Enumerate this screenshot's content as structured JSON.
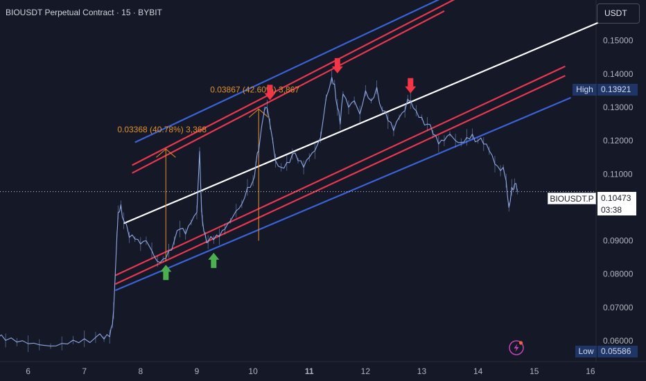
{
  "header": {
    "title": "BIOUSDT Perpetual Contract · 15 · BYBIT",
    "currency_button": "USDT"
  },
  "price_labels": {
    "high_label": "High",
    "high_value": "0.13921",
    "low_label": "Low",
    "low_value": "0.05586",
    "symbol": "BIOUSDT.P",
    "last_value": "0.10473",
    "countdown": "03:38"
  },
  "colors": {
    "background": "#141827",
    "price_line": "#8fa9e6",
    "channel_blue": "#3b63d8",
    "channel_red": "#e8384f",
    "midline": "#ffffff",
    "measure": "#e4902b",
    "arrow_up": "#4caf50",
    "arrow_down": "#f23645"
  },
  "icons": {
    "alert": "lightning-alert-icon"
  },
  "chart_data": {
    "type": "line",
    "title": "BIOUSDT Perpetual Contract · 15 · BYBIT",
    "xlabel": "",
    "ylabel": "",
    "x_ticks": [
      "6",
      "7",
      "8",
      "9",
      "10",
      "11",
      "12",
      "13",
      "14",
      "15",
      "16"
    ],
    "bold_x_tick": "11",
    "y_ticks": [
      "0.06000",
      "0.07000",
      "0.08000",
      "0.09000",
      "0.10000",
      "0.11000",
      "0.12000",
      "0.13000",
      "0.14000",
      "0.15000"
    ],
    "xlim": [
      5.5,
      16.1
    ],
    "ylim": [
      0.05375,
      0.1622
    ],
    "grid": false,
    "series": [
      {
        "type": "line",
        "x": [
          5.45,
          5.6,
          5.8,
          6.0,
          6.2,
          6.4,
          6.6,
          6.8,
          7.0,
          7.2,
          7.35,
          7.45,
          7.5,
          7.52,
          7.55,
          7.58,
          7.6,
          7.65,
          7.7,
          7.8,
          7.9,
          8.0,
          8.1,
          8.2,
          8.3,
          8.4,
          8.5,
          8.6,
          8.7,
          8.8,
          8.9,
          9.0,
          9.05,
          9.08,
          9.1,
          9.15,
          9.2,
          9.3,
          9.4,
          9.5,
          9.6,
          9.7,
          9.8,
          9.9,
          10.0,
          10.05,
          10.1,
          10.2,
          10.25,
          10.3,
          10.35,
          10.4,
          10.5,
          10.6,
          10.7,
          10.8,
          10.9,
          11.0,
          11.1,
          11.2,
          11.3,
          11.4,
          11.45,
          11.5,
          11.55,
          11.6,
          11.7,
          11.8,
          11.9,
          12.0,
          12.1,
          12.2,
          12.3,
          12.4,
          12.5,
          12.6,
          12.7,
          12.75,
          12.8,
          12.9,
          13.0,
          13.1,
          13.2,
          13.3,
          13.4,
          13.5,
          13.6,
          13.7,
          13.8,
          13.9,
          14.0,
          14.1,
          14.2,
          14.3,
          14.4,
          14.45,
          14.5,
          14.55,
          14.6,
          14.65,
          14.7
        ],
        "y": [
          0.0608,
          0.0601,
          0.0596,
          0.0591,
          0.0588,
          0.0584,
          0.0592,
          0.0602,
          0.0606,
          0.061,
          0.0605,
          0.0612,
          0.065,
          0.069,
          0.08,
          0.092,
          0.0985,
          0.1008,
          0.096,
          0.091,
          0.0905,
          0.089,
          0.09,
          0.087,
          0.0838,
          0.0845,
          0.087,
          0.09,
          0.0935,
          0.092,
          0.0955,
          0.0985,
          0.1168,
          0.101,
          0.096,
          0.0918,
          0.0896,
          0.0903,
          0.0912,
          0.0935,
          0.096,
          0.099,
          0.101,
          0.106,
          0.108,
          0.113,
          0.117,
          0.129,
          0.1298,
          0.125,
          0.12,
          0.114,
          0.112,
          0.1135,
          0.116,
          0.114,
          0.112,
          0.115,
          0.117,
          0.121,
          0.133,
          0.139,
          0.137,
          0.13,
          0.125,
          0.134,
          0.13,
          0.132,
          0.128,
          0.135,
          0.132,
          0.136,
          0.129,
          0.126,
          0.123,
          0.127,
          0.129,
          0.1325,
          0.132,
          0.129,
          0.127,
          0.125,
          0.122,
          0.119,
          0.12,
          0.122,
          0.12,
          0.1195,
          0.121,
          0.122,
          0.12,
          0.119,
          0.117,
          0.113,
          0.111,
          0.112,
          0.108,
          0.1,
          0.106,
          0.107,
          0.1047
        ]
      }
    ],
    "channel_lines": [
      {
        "name": "upper-blue",
        "color": "#3b63d8",
        "x": [
          7.9,
          13.4
        ],
        "y": [
          0.1195,
          0.1631
        ]
      },
      {
        "name": "upper-red-1",
        "color": "#e8384f",
        "x": [
          7.85,
          13.6
        ],
        "y": [
          0.11265,
          0.16255
        ]
      },
      {
        "name": "upper-red-2",
        "color": "#e8384f",
        "x": [
          7.85,
          13.4
        ],
        "y": [
          0.1103,
          0.1589
        ]
      },
      {
        "name": "midline",
        "color": "#ffffff",
        "x": [
          7.7,
          16.15
        ],
        "y": [
          0.0952,
          0.1555
        ]
      },
      {
        "name": "lower-red-1",
        "color": "#e8384f",
        "x": [
          7.55,
          15.55
        ],
        "y": [
          0.0796,
          0.1423
        ]
      },
      {
        "name": "lower-red-2",
        "color": "#e8384f",
        "x": [
          7.55,
          15.55
        ],
        "y": [
          0.077,
          0.1395
        ]
      },
      {
        "name": "lower-blue",
        "color": "#3b63d8",
        "x": [
          7.55,
          15.65
        ],
        "y": [
          0.0751,
          0.1329
        ]
      }
    ],
    "measurements": [
      {
        "x": 8.45,
        "from": 0.0838,
        "to": 0.1175,
        "label": "0.03368 (40.78%) 3,368"
      },
      {
        "x": 10.1,
        "from": 0.09,
        "to": 0.1295,
        "label": "0.03867 (42.60%) 3,867"
      }
    ],
    "arrows": [
      {
        "direction": "up",
        "x": 8.45,
        "y": 0.0805
      },
      {
        "direction": "up",
        "x": 9.3,
        "y": 0.0841
      },
      {
        "direction": "down",
        "x": 10.3,
        "y": 0.1345
      },
      {
        "direction": "down",
        "x": 11.5,
        "y": 0.1425
      },
      {
        "direction": "down",
        "x": 12.8,
        "y": 0.1365
      }
    ],
    "last_price": 0.10473,
    "high": 0.13921,
    "low": 0.05586
  }
}
